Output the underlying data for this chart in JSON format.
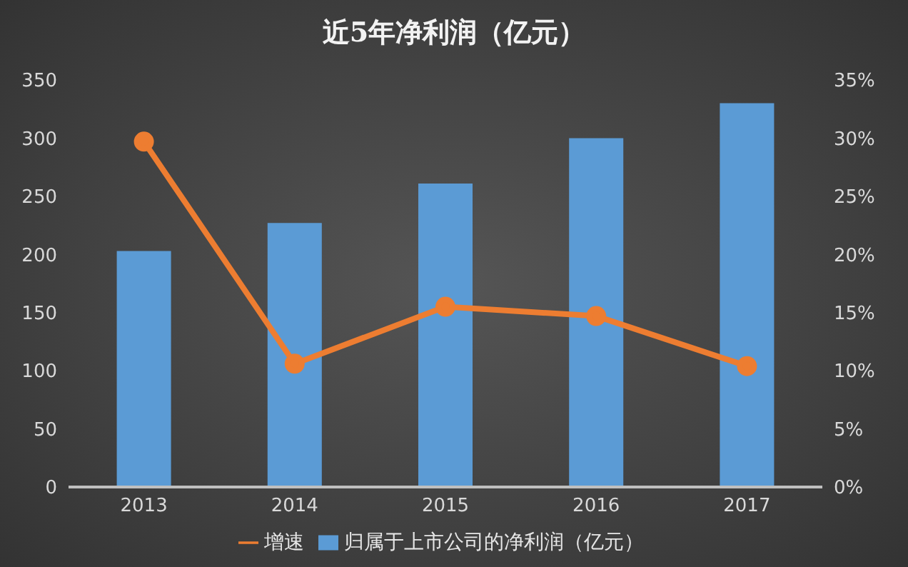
{
  "chart_data": {
    "type": "bar",
    "title": "近5年净利润（亿元）",
    "categories": [
      "2013",
      "2014",
      "2015",
      "2016",
      "2017"
    ],
    "series": [
      {
        "name": "归属于上市公司的净利润（亿元）",
        "color": "#5b9bd5",
        "values": [
          203,
          227,
          261,
          300,
          330
        ]
      },
      {
        "name": "增速",
        "type": "line",
        "axis": "y2",
        "color": "#ed7d31",
        "values": [
          29.7,
          10.6,
          15.5,
          14.7,
          10.4
        ]
      }
    ],
    "ylim": [
      0,
      350
    ],
    "yticks": [
      0,
      50,
      100,
      150,
      200,
      250,
      300,
      350
    ],
    "y2lim": [
      0,
      35
    ],
    "y2ticks": [
      {
        "value": 0,
        "label": "0%"
      },
      {
        "value": 5,
        "label": "5%"
      },
      {
        "value": 10,
        "label": "10%"
      },
      {
        "value": 15,
        "label": "15%"
      },
      {
        "value": 20,
        "label": "20%"
      },
      {
        "value": 25,
        "label": "25%"
      },
      {
        "value": 30,
        "label": "30%"
      },
      {
        "value": 35,
        "label": "35%"
      }
    ],
    "grid": false,
    "legend": "bottom",
    "marker": "circle"
  }
}
